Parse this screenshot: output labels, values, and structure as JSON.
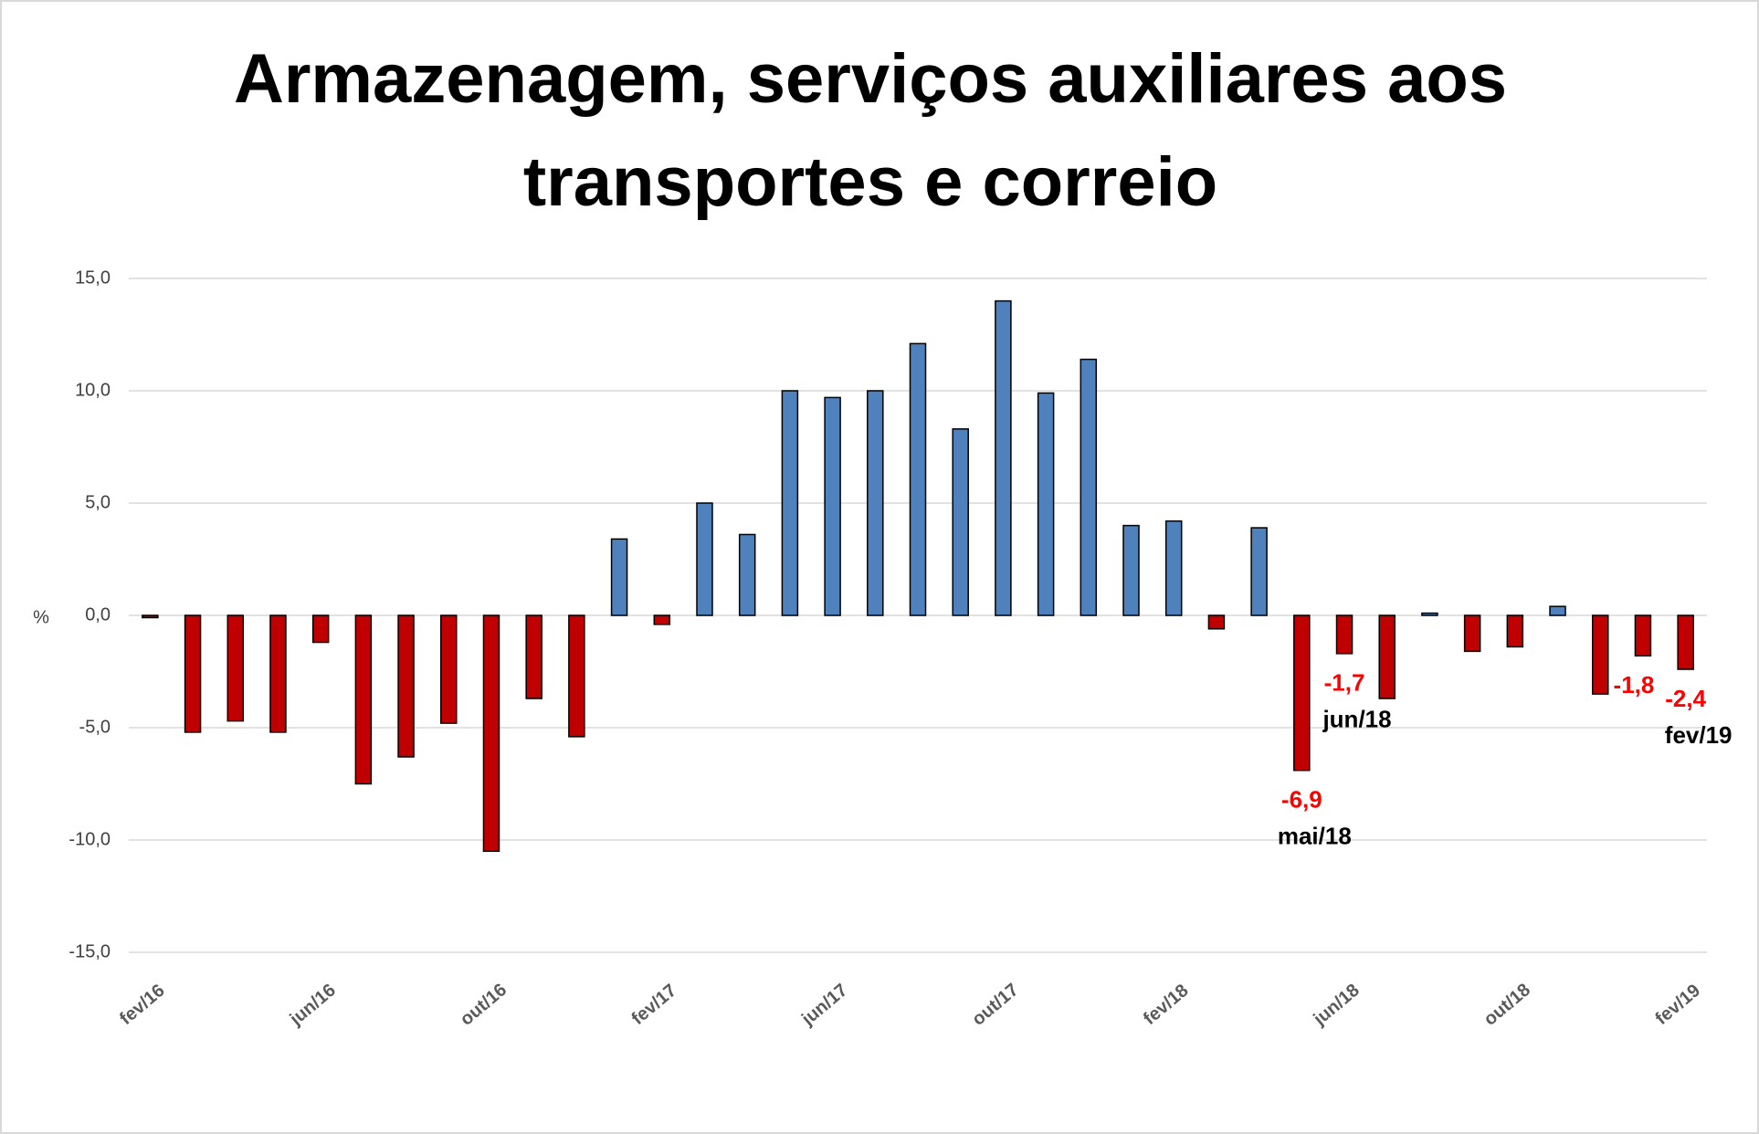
{
  "chart_data": {
    "type": "bar",
    "title_lines": [
      "Armazenagem, serviços auxiliares aos",
      "transportes e correio"
    ],
    "y_label": "%",
    "categories": [
      "fev/16",
      null,
      null,
      null,
      "jun/16",
      null,
      null,
      null,
      "out/16",
      null,
      null,
      null,
      "fev/17",
      null,
      null,
      null,
      "jun/17",
      null,
      null,
      null,
      "out/17",
      null,
      null,
      null,
      "fev/18",
      null,
      null,
      null,
      "jun/18",
      null,
      null,
      null,
      "out/18",
      null,
      null,
      null,
      "fev/19"
    ],
    "values": [
      -0.1,
      -5.2,
      -4.7,
      -5.2,
      -1.2,
      -7.5,
      -6.3,
      -4.8,
      -10.5,
      -3.7,
      -5.4,
      3.4,
      -0.4,
      5.0,
      3.6,
      10.0,
      9.7,
      10.0,
      12.1,
      8.3,
      14.0,
      9.9,
      11.4,
      4.0,
      4.2,
      -0.6,
      3.9,
      -6.9,
      -1.7,
      -3.7,
      0.1,
      -1.6,
      -1.4,
      0.4,
      -3.5,
      -1.8,
      -2.4
    ],
    "value_labels": [
      null,
      null,
      null,
      null,
      null,
      null,
      null,
      null,
      null,
      null,
      null,
      null,
      null,
      null,
      null,
      null,
      null,
      null,
      null,
      null,
      null,
      null,
      null,
      null,
      null,
      null,
      null,
      "-6,9",
      "-1,7",
      null,
      null,
      null,
      null,
      null,
      null,
      "-1,8",
      "-2,4"
    ],
    "point_labels": [
      null,
      null,
      null,
      null,
      null,
      null,
      null,
      null,
      null,
      null,
      null,
      null,
      null,
      null,
      null,
      null,
      null,
      null,
      null,
      null,
      null,
      null,
      null,
      null,
      null,
      null,
      null,
      "mai/18",
      "jun/18",
      null,
      null,
      null,
      null,
      null,
      null,
      null,
      "fev/19"
    ],
    "color_positive": "#4f81bd",
    "color_negative": "#c00000",
    "value_label_color": "#ff0000",
    "ylim": [
      -15,
      15
    ],
    "yticks": [
      {
        "value": -15,
        "label": "-15,0"
      },
      {
        "value": -10,
        "label": "-10,0"
      },
      {
        "value": -5,
        "label": "-5,0"
      },
      {
        "value": 0,
        "label": "0,0"
      },
      {
        "value": 5,
        "label": "5,0"
      },
      {
        "value": 10,
        "label": "10,0"
      },
      {
        "value": 15,
        "label": "15,0"
      }
    ],
    "grid": true
  }
}
